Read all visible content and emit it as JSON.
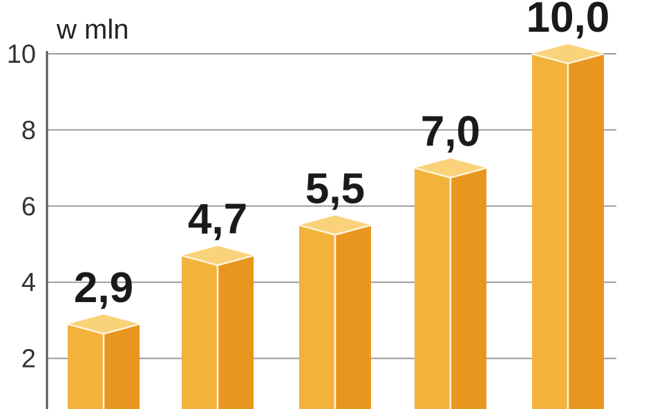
{
  "chart_data": {
    "type": "bar",
    "categories": [
      "",
      "",
      "",
      "",
      ""
    ],
    "values": [
      2.9,
      4.7,
      5.5,
      7.0,
      10.0
    ],
    "value_labels": [
      "2,9",
      "4,7",
      "5,5",
      "7,0",
      "10,0"
    ],
    "unit": "w mln",
    "title": "",
    "xlabel": "",
    "ylabel": "",
    "ylim": [
      0,
      10
    ],
    "yticks": [
      2,
      4,
      6,
      8,
      10
    ],
    "ytick_labels": [
      "2",
      "4",
      "6",
      "8",
      "10"
    ],
    "grid": true,
    "colors": {
      "front": "#F2B33D",
      "side": "#E8961E",
      "top": "#FAD27A",
      "edge": "#FFF4DC",
      "grid": "#9A9A9A",
      "axis": "#555555"
    }
  }
}
